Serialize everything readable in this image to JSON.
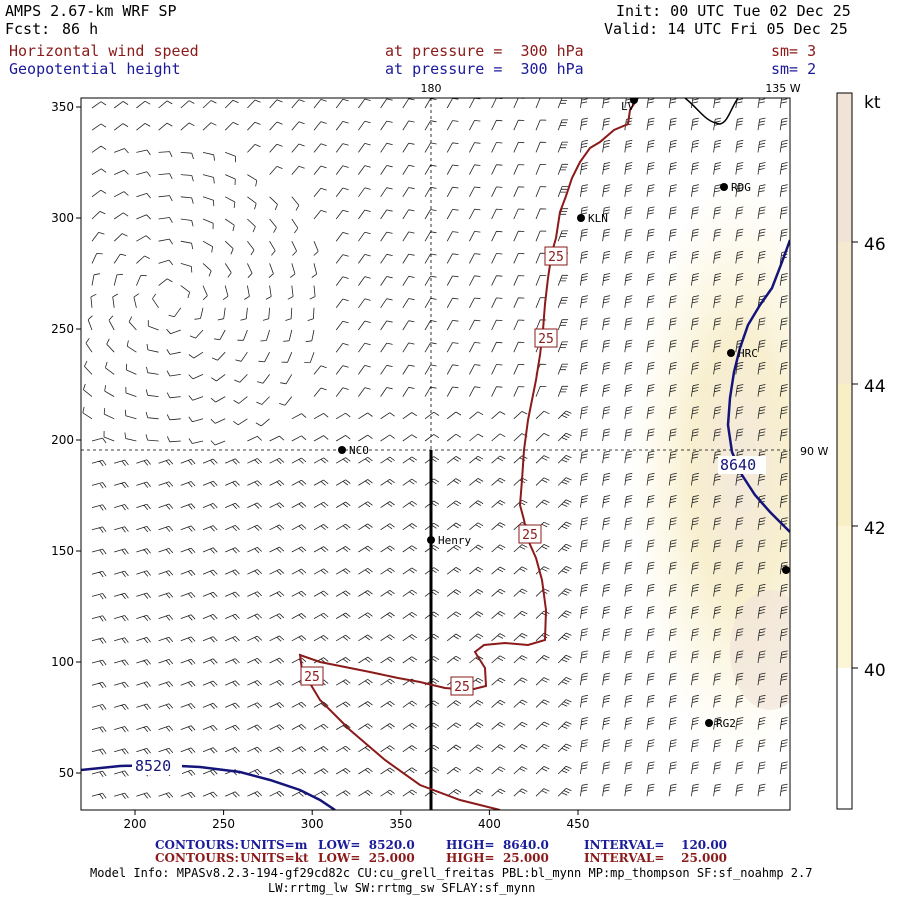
{
  "header": {
    "model": "AMPS 2.67-km WRF SP",
    "fcst_label": "Fcst:",
    "fcst_value": "86 h",
    "init": "Init: 00 UTC Tue 02 Dec 25",
    "valid": "Valid: 14 UTC Fri 05 Dec 25",
    "field1": "Horizontal wind speed",
    "field1_level": "at pressure =  300 hPa",
    "field1_sm": "sm= 3",
    "field2": "Geopotential height",
    "field2_level": "at pressure =  300 hPa",
    "field2_sm": "sm= 2"
  },
  "map": {
    "x_ticks": [
      "200",
      "250",
      "300",
      "350",
      "400",
      "450"
    ],
    "y_ticks": [
      "350",
      "300",
      "250",
      "200",
      "150",
      "100",
      "50"
    ],
    "meridian_label": "180",
    "meridian2_label": "135 W",
    "parallel_label": "90 W",
    "stations": [
      {
        "name": "KLN"
      },
      {
        "name": "RDG"
      },
      {
        "name": "HRC"
      },
      {
        "name": "NCO"
      },
      {
        "name": "Henry"
      },
      {
        "name": "RG2"
      },
      {
        "name": "LV"
      }
    ],
    "height_contours": [
      "8520",
      "8640"
    ],
    "wind_contour_label": "25",
    "colors": {
      "wind_contour": "#8b1a1a",
      "height_contour": "#14147a",
      "shade_low": "#fcf6da",
      "shade_high": "#f3e8dc"
    }
  },
  "colorbar": {
    "unit": "kt",
    "labels": [
      "46",
      "44",
      "42",
      "40"
    ],
    "colors": [
      "#ffffff",
      "#fcf6d6",
      "#f9efc6",
      "#f5e9d0",
      "#f1e3d6"
    ]
  },
  "footer": {
    "c1_label": "CONTOURS:",
    "c1_units": "UNITS=m",
    "c1_low": "LOW=  8520.0",
    "c1_high": "HIGH=  8640.0",
    "c1_int": "INTERVAL=    120.00",
    "c2_label": "CONTOURS:",
    "c2_units": "UNITS=kt",
    "c2_low": "LOW=  25.000",
    "c2_high": "HIGH=  25.000",
    "c2_int": "INTERVAL=    25.000",
    "info1": "Model Info: MPASv8.2.3-194-gf29cd82c CU:cu_grell_freitas PBL:bl_mynn MP:mp_thompson SF:sf_noahmp 2.7",
    "info2": "LW:rrtmg_lw SW:rrtmg_sw SFLAY:sf_mynn"
  }
}
